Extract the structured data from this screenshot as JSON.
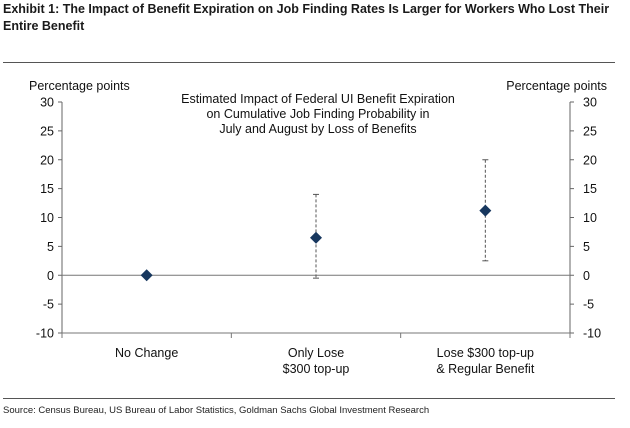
{
  "exhibit": {
    "title": "Exhibit 1: The Impact of Benefit Expiration on Job Finding Rates Is Larger for Workers Who Lost Their Entire Benefit",
    "source": "Source: Census Bureau, US Bureau of Labor Statistics, Goldman Sachs Global Investment Research"
  },
  "chart_data": {
    "type": "scatter",
    "title_lines": [
      "Estimated Impact of Federal UI Benefit Expiration",
      "on Cumulative Job Finding Probability in",
      "July and August by Loss of Benefits"
    ],
    "ylabel_left": "Percentage points",
    "ylabel_right": "Percentage points",
    "ylim": [
      -10,
      30
    ],
    "yticks": [
      -10,
      -5,
      0,
      5,
      10,
      15,
      20,
      25,
      30
    ],
    "categories": [
      [
        "No Change"
      ],
      [
        "Only Lose",
        "$300 top-up"
      ],
      [
        "Lose $300 top-up",
        "& Regular Benefit"
      ]
    ],
    "values": [
      0,
      6.5,
      11.2
    ],
    "error_low": [
      0,
      -0.5,
      2.5
    ],
    "error_high": [
      0,
      14,
      20
    ],
    "marker": "diamond",
    "marker_color": "#17375e",
    "errorbar_style": "dashed",
    "grid": false
  }
}
